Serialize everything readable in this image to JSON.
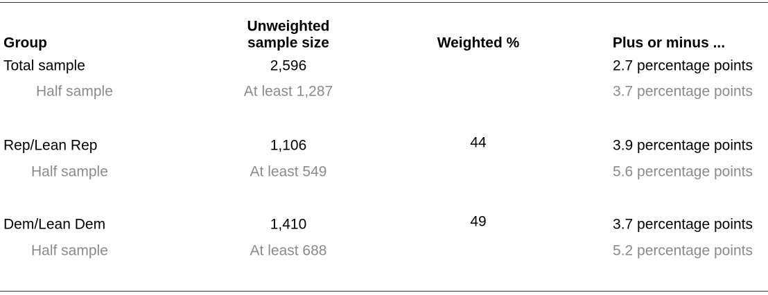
{
  "table": {
    "headers": {
      "group": "Group",
      "sample_size": [
        "Unweighted",
        "sample size"
      ],
      "weighted": "Weighted %",
      "margin": "Plus or minus ..."
    },
    "rows": [
      {
        "group": "Total sample",
        "sample_size": "2,596",
        "margin": "2.7 percentage points"
      },
      {
        "group": "Half sample",
        "sample_size": "At least 1,287",
        "margin": "3.7 percentage points"
      },
      {
        "group": "Rep/Lean Rep",
        "sample_size": "1,106",
        "weighted": "44",
        "margin": "3.9 percentage points"
      },
      {
        "group": "Half sample",
        "sample_size": "At least 549",
        "margin": "5.6 percentage points"
      },
      {
        "group": "Dem/Lean Dem",
        "sample_size": "1,410",
        "weighted": "49",
        "margin": "3.7 percentage points"
      },
      {
        "group": "Half sample",
        "sample_size": "At least 688",
        "margin": "5.2 percentage points"
      }
    ]
  }
}
